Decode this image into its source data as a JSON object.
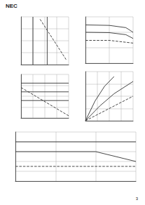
{
  "document": {
    "logo": "NEC",
    "page": "3"
  },
  "chart_data": [
    {
      "type": "line",
      "color": "#333333",
      "grid": true,
      "tick_labels": false,
      "xlim": [
        0,
        100
      ],
      "xticks": [
        0,
        25,
        50,
        75,
        100
      ],
      "ylim": [
        0,
        100
      ],
      "yticks": [
        0,
        25,
        50,
        75,
        100
      ],
      "series": [
        {
          "x": [
            40,
            95
          ],
          "values": [
            95,
            10
          ],
          "line_style": "dashed"
        },
        {
          "x": [
            25,
            25
          ],
          "values": [
            0,
            100
          ],
          "line_style": "solid"
        },
        {
          "x": [
            55,
            55
          ],
          "values": [
            0,
            100
          ],
          "line_style": "solid"
        }
      ]
    },
    {
      "type": "line",
      "color": "#333333",
      "grid": true,
      "tick_labels": false,
      "log": true,
      "xlim": [
        1,
        100
      ],
      "xticks": [
        1,
        10,
        100
      ],
      "ylim": [
        1,
        1000
      ],
      "yticks": [
        1,
        10,
        100,
        1000
      ],
      "series": [
        {
          "x": [
            1,
            10,
            50,
            100
          ],
          "values": [
            300,
            280,
            200,
            100
          ],
          "line_style": "solid"
        },
        {
          "x": [
            1,
            10,
            50,
            100
          ],
          "values": [
            100,
            95,
            70,
            40
          ],
          "line_style": "solid"
        },
        {
          "x": [
            1,
            10,
            100
          ],
          "values": [
            30,
            30,
            20
          ],
          "line_style": "dashed"
        }
      ]
    },
    {
      "type": "line",
      "color": "#333333",
      "grid": true,
      "tick_labels": false,
      "xlim": [
        0,
        100
      ],
      "xticks": [
        0,
        25,
        50,
        75,
        100
      ],
      "ylim": [
        0,
        100
      ],
      "yticks": [
        0,
        25,
        50,
        75,
        100
      ],
      "series": [
        {
          "x": [
            0,
            100
          ],
          "values": [
            80,
            80
          ],
          "line_style": "solid"
        },
        {
          "x": [
            0,
            100
          ],
          "values": [
            60,
            60
          ],
          "line_style": "solid"
        },
        {
          "x": [
            0,
            100
          ],
          "values": [
            40,
            40
          ],
          "line_style": "solid"
        },
        {
          "x": [
            0,
            100
          ],
          "values": [
            70,
            5
          ],
          "line_style": "dashed"
        }
      ]
    },
    {
      "type": "line",
      "color": "#333333",
      "grid": true,
      "tick_labels": false,
      "xlim": [
        0,
        100
      ],
      "xticks": [
        0,
        25,
        50,
        75,
        100
      ],
      "ylim": [
        0,
        100
      ],
      "yticks": [
        0,
        25,
        50,
        75,
        100
      ],
      "series": [
        {
          "x": [
            0,
            20,
            40,
            60
          ],
          "values": [
            0,
            40,
            70,
            90
          ],
          "line_style": "solid"
        },
        {
          "x": [
            0,
            30,
            60,
            100
          ],
          "values": [
            0,
            30,
            55,
            80
          ],
          "line_style": "solid"
        },
        {
          "x": [
            0,
            40,
            100
          ],
          "values": [
            0,
            20,
            50
          ],
          "line_style": "dashed"
        }
      ]
    },
    {
      "type": "line",
      "color": "#333333",
      "grid": true,
      "tick_labels": false,
      "log": "x",
      "xlim": [
        1,
        1000
      ],
      "xticks": [
        1,
        10,
        100,
        1000
      ],
      "ylim": [
        0,
        100
      ],
      "yticks": [
        0,
        20,
        40,
        60,
        80,
        100
      ],
      "series": [
        {
          "x": [
            1,
            1000
          ],
          "values": [
            80,
            80
          ],
          "line_style": "solid"
        },
        {
          "x": [
            1,
            100,
            1000
          ],
          "values": [
            60,
            60,
            40
          ],
          "line_style": "solid"
        },
        {
          "x": [
            1,
            1000
          ],
          "values": [
            30,
            30
          ],
          "line_style": "dashed"
        }
      ]
    }
  ]
}
